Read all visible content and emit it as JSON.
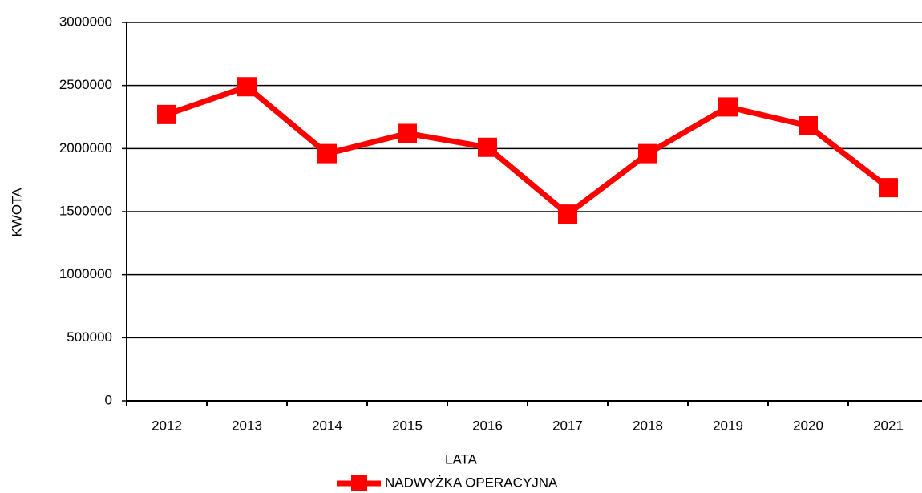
{
  "chart_data": {
    "type": "line",
    "x_label": "LATA",
    "y_label": "KWOTA",
    "categories": [
      "2012",
      "2013",
      "2014",
      "2015",
      "2016",
      "2017",
      "2018",
      "2019",
      "2020",
      "2021"
    ],
    "series": [
      {
        "name": "NADWYŻKA OPERACYJNA",
        "color": "#ff0000",
        "values": [
          2270000,
          2490000,
          1960000,
          2120000,
          2010000,
          1480000,
          1960000,
          2330000,
          2180000,
          1690000
        ]
      }
    ],
    "ylim": [
      0,
      3000000
    ],
    "yticks": [
      0,
      500000,
      1000000,
      1500000,
      2000000,
      2500000,
      3000000
    ],
    "grid": true,
    "legend": "bottom"
  }
}
